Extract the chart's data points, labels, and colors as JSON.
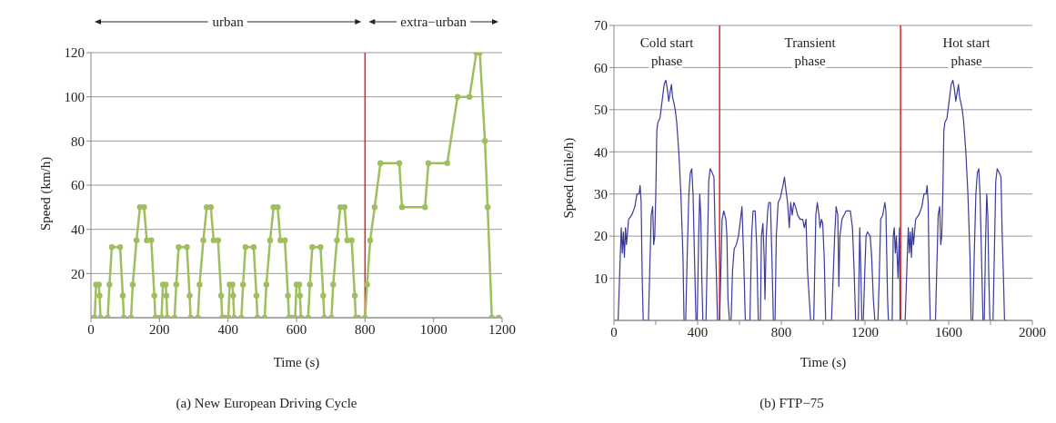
{
  "chart_data": [
    {
      "type": "line",
      "title": "(a)  New European Driving Cycle",
      "xlabel": "Time (s)",
      "ylabel": "Speed (km/h)",
      "x": [
        0,
        11,
        15,
        23,
        25,
        28,
        49,
        54,
        61,
        85,
        93,
        96,
        117,
        122,
        133,
        143,
        155,
        163,
        176,
        185,
        188,
        195,
        206,
        210,
        218,
        220,
        223,
        244,
        249,
        256,
        280,
        288,
        291,
        312,
        317,
        328,
        338,
        350,
        358,
        371,
        380,
        383,
        390,
        401,
        405,
        413,
        415,
        418,
        439,
        444,
        451,
        475,
        483,
        486,
        507,
        512,
        523,
        533,
        545,
        553,
        566,
        575,
        578,
        585,
        596,
        600,
        608,
        610,
        613,
        634,
        639,
        646,
        670,
        678,
        681,
        702,
        707,
        718,
        728,
        740,
        748,
        761,
        770,
        773,
        780,
        800,
        806,
        815,
        828,
        845,
        900,
        908,
        975,
        985,
        1040,
        1070,
        1105,
        1125,
        1135,
        1150,
        1158,
        1170,
        1190
      ],
      "values": [
        0,
        0,
        15,
        15,
        10,
        0,
        0,
        15,
        32,
        32,
        10,
        0,
        0,
        15,
        35,
        50,
        50,
        35,
        35,
        10,
        0,
        0,
        0,
        15,
        15,
        10,
        0,
        0,
        15,
        32,
        32,
        10,
        0,
        0,
        15,
        35,
        50,
        50,
        35,
        35,
        10,
        0,
        0,
        0,
        15,
        15,
        10,
        0,
        0,
        15,
        32,
        32,
        10,
        0,
        0,
        15,
        35,
        50,
        50,
        35,
        35,
        10,
        0,
        0,
        0,
        15,
        15,
        10,
        0,
        0,
        15,
        32,
        32,
        10,
        0,
        0,
        15,
        35,
        50,
        50,
        35,
        35,
        10,
        0,
        0,
        0,
        15,
        35,
        50,
        70,
        70,
        50,
        50,
        70,
        70,
        100,
        100,
        120,
        120,
        80,
        50,
        0,
        0
      ],
      "color": "#9fbf5f",
      "marker": "circle",
      "xlim": [
        0,
        1200
      ],
      "xticks": [
        0,
        200,
        400,
        600,
        800,
        1000,
        1200
      ],
      "ylim": [
        0,
        120
      ],
      "yticks": [
        20,
        40,
        60,
        80,
        100,
        120
      ],
      "grid": "y",
      "ref_lines": [
        {
          "axis": "x",
          "value": 800,
          "color": "#dd2222"
        }
      ],
      "annotations": [
        "urban",
        "extra−urban"
      ]
    },
    {
      "type": "line",
      "title": "(b)  FTP−75",
      "xlabel": "Time (s)",
      "ylabel": "Speed (mile/h)",
      "x": [
        0,
        20,
        30,
        35,
        40,
        45,
        50,
        55,
        60,
        70,
        85,
        100,
        110,
        120,
        125,
        130,
        135,
        140,
        165,
        170,
        178,
        185,
        190,
        195,
        200,
        205,
        210,
        220,
        230,
        240,
        248,
        255,
        262,
        268,
        275,
        280,
        285,
        293,
        300,
        310,
        320,
        330,
        335,
        343,
        350,
        358,
        365,
        372,
        378,
        385,
        392,
        398,
        405,
        410,
        415,
        420,
        425,
        440,
        448,
        453,
        460,
        470,
        478,
        484,
        490,
        495,
        505,
        510,
        517,
        525,
        535,
        540,
        545,
        552,
        560,
        567,
        575,
        585,
        595,
        605,
        612,
        620,
        628,
        650,
        658,
        665,
        675,
        682,
        690,
        700,
        705,
        712,
        718,
        722,
        728,
        735,
        740,
        748,
        755,
        762,
        770,
        776,
        785,
        795,
        808,
        815,
        822,
        830,
        838,
        845,
        852,
        860,
        868,
        878,
        890,
        902,
        910,
        918,
        925,
        940,
        955,
        965,
        972,
        980,
        985,
        992,
        998,
        1005,
        1012,
        1040,
        1055,
        1062,
        1070,
        1075,
        1080,
        1090,
        1110,
        1130,
        1140,
        1148,
        1155,
        1168,
        1175,
        1180,
        1185,
        1192,
        1198,
        1205,
        1212,
        1225,
        1232,
        1240,
        1247,
        1262,
        1268,
        1275,
        1285,
        1295,
        1300,
        1308,
        1312,
        1330,
        1335,
        1340,
        1345,
        1350,
        1358,
        1365,
        1368,
        1372,
        1392,
        1402,
        1407,
        1412,
        1417,
        1422,
        1427,
        1432,
        1442,
        1457,
        1472,
        1482,
        1492,
        1497,
        1502,
        1507,
        1512,
        1537,
        1542,
        1550,
        1557,
        1562,
        1567,
        1572,
        1577,
        1582,
        1592,
        1602,
        1612,
        1620,
        1627,
        1634,
        1640,
        1647,
        1652,
        1657,
        1665,
        1672,
        1682,
        1692,
        1702,
        1707,
        1715,
        1722,
        1730,
        1737,
        1744,
        1750,
        1757,
        1764,
        1770,
        1777,
        1782,
        1787,
        1792,
        1797,
        1812,
        1820,
        1825,
        1832,
        1842,
        1850,
        1856,
        1862,
        1867,
        1877
      ],
      "values": [
        0,
        0,
        15,
        22,
        16,
        21,
        15,
        22,
        18,
        24,
        25,
        27,
        30,
        30,
        32,
        28,
        10,
        0,
        0,
        10,
        25,
        27,
        18,
        20,
        30,
        45,
        47,
        48,
        52,
        56,
        57,
        55,
        52,
        54,
        56,
        53,
        52,
        50,
        47,
        40,
        30,
        15,
        0,
        0,
        15,
        30,
        35,
        36,
        30,
        15,
        0,
        0,
        20,
        30,
        25,
        10,
        0,
        0,
        20,
        33,
        36,
        35,
        34,
        20,
        10,
        0,
        0,
        10,
        24,
        26,
        24,
        20,
        5,
        0,
        0,
        12,
        17,
        18,
        20,
        24,
        27,
        15,
        0,
        0,
        20,
        26,
        26,
        18,
        0,
        0,
        20,
        23,
        15,
        5,
        20,
        26,
        28,
        28,
        15,
        0,
        0,
        20,
        28,
        29,
        32,
        34,
        31,
        28,
        22,
        28,
        25,
        28,
        27,
        25,
        24,
        24,
        22,
        24,
        12,
        0,
        0,
        25,
        28,
        25,
        22,
        24,
        23,
        15,
        0,
        0,
        20,
        27,
        25,
        8,
        20,
        24,
        26,
        26,
        22,
        12,
        0,
        0,
        22,
        12,
        0,
        0,
        10,
        20,
        21,
        20,
        15,
        5,
        0,
        0,
        10,
        24,
        25,
        28,
        26,
        5,
        0,
        0,
        20,
        22,
        16,
        20,
        10,
        22,
        0,
        0,
        0,
        15,
        22,
        16,
        21,
        15,
        22,
        18,
        24,
        25,
        27,
        30,
        30,
        32,
        28,
        10,
        0,
        0,
        10,
        25,
        27,
        18,
        20,
        30,
        45,
        47,
        48,
        52,
        56,
        57,
        55,
        52,
        54,
        56,
        53,
        52,
        50,
        47,
        40,
        30,
        15,
        0,
        0,
        15,
        30,
        35,
        36,
        30,
        15,
        0,
        0,
        20,
        30,
        25,
        10,
        0,
        0,
        20,
        33,
        36,
        35,
        34,
        20,
        10,
        0,
        0
      ],
      "color": "#3a3a9a",
      "xlim": [
        0,
        2000
      ],
      "xticks": [
        0,
        {
          "value": 200,
          "label": null
        },
        400,
        {
          "value": 600,
          "label": null
        },
        800,
        {
          "value": 1000,
          "label": null
        },
        1200,
        {
          "value": 1400,
          "label": null
        },
        1600,
        {
          "value": 1800,
          "label": null
        },
        2000
      ],
      "ylim": [
        0,
        70
      ],
      "yticks": [
        10,
        20,
        30,
        40,
        50,
        60,
        70
      ],
      "grid": "y",
      "ref_lines": [
        {
          "axis": "x",
          "value": 505,
          "color": "#dd2222"
        },
        {
          "axis": "x",
          "value": 1370,
          "color": "#dd2222"
        }
      ],
      "annotations": [
        "Cold start\nphase",
        "Transient\nphase",
        "Hot start\nphase"
      ]
    }
  ]
}
